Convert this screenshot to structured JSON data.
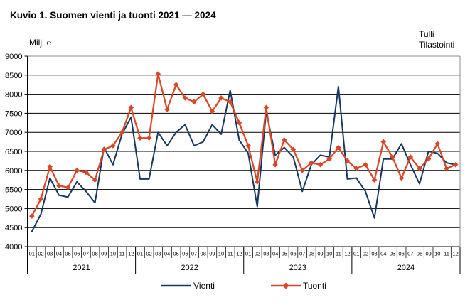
{
  "title": "Kuvio 1. Suomen vienti ja tuonti 2021 — 2024",
  "y_axis_unit": "Milj. e",
  "source_line1": "Tulli",
  "source_line2": "Tilastointi",
  "colors": {
    "vienti": "#17375E",
    "tuonti": "#D84727",
    "grid": "#000000",
    "frame": "#8C8C8C",
    "background": "#FFFFFF"
  },
  "chart_data": {
    "type": "line",
    "title": "Kuvio 1. Suomen vienti ja tuonti 2021 — 2024",
    "xlabel": "",
    "ylabel": "Milj. e",
    "ylim": [
      4000,
      9000
    ],
    "ytick_step": 500,
    "grid": true,
    "legend_position": "bottom",
    "years": [
      "2021",
      "2022",
      "2023",
      "2024"
    ],
    "months_per_year": [
      "01",
      "02",
      "03",
      "04",
      "05",
      "06",
      "07",
      "08",
      "09",
      "10",
      "11",
      "12"
    ],
    "series": [
      {
        "name": "Vienti",
        "color": "#17375E",
        "marker": "none",
        "values": [
          4400,
          4850,
          5800,
          5350,
          5300,
          5700,
          5450,
          5150,
          6600,
          6150,
          6950,
          7400,
          5775,
          5775,
          7000,
          6650,
          7000,
          7200,
          6650,
          6750,
          7200,
          6950,
          8100,
          6800,
          6450,
          5050,
          7550,
          6400,
          6600,
          6350,
          5450,
          6150,
          6400,
          6350,
          8200,
          5775,
          5800,
          5450,
          4750,
          6300,
          6300,
          6700,
          6150,
          5650,
          6500,
          6450,
          6200,
          6150
        ]
      },
      {
        "name": "Tuonti",
        "color": "#D84727",
        "marker": "diamond",
        "values": [
          4800,
          5250,
          6100,
          5600,
          5550,
          6000,
          5950,
          5750,
          6550,
          6650,
          7000,
          7650,
          6850,
          6850,
          8530,
          7600,
          8250,
          7900,
          7800,
          8000,
          7550,
          7900,
          7800,
          7250,
          6650,
          5700,
          7650,
          6150,
          6800,
          6550,
          6000,
          6200,
          6150,
          6300,
          6600,
          6250,
          6050,
          6150,
          5750,
          6750,
          6350,
          5800,
          6350,
          6050,
          6300,
          6700,
          6050,
          6150
        ]
      }
    ]
  }
}
